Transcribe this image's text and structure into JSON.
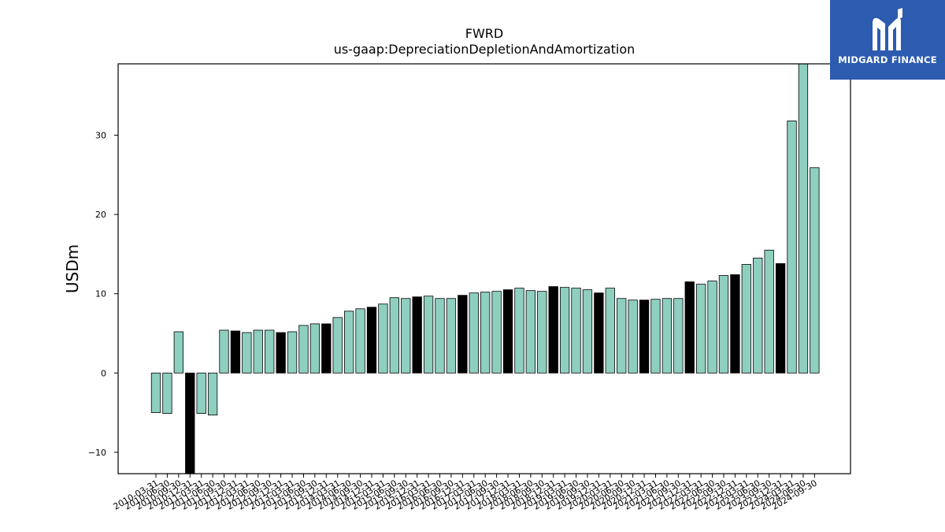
{
  "brand": {
    "name": "MIDGARD FINANCE",
    "icon": "midgard-m-icon",
    "color": "#2c5bb0"
  },
  "colors": {
    "bar_teal": "#8ecfc0",
    "bar_black": "#000000",
    "edge": "#000000"
  },
  "chart_data": {
    "type": "bar",
    "title": "FWRD",
    "subtitle": "us-gaap:DepreciationDepletionAndAmortization",
    "xlabel": "",
    "ylabel": "USDm",
    "ylim": [
      -12.7,
      39
    ],
    "yticks": [
      -10,
      0,
      10,
      20,
      30
    ],
    "grid": false,
    "categories": [
      "2010-03-31",
      "2010-06-30",
      "2010-09-30",
      "2010-12-31",
      "2011-03-31",
      "2011-06-30",
      "2011-09-30",
      "2011-12-31",
      "2012-03-31",
      "2012-06-30",
      "2012-09-30",
      "2012-12-31",
      "2013-03-31",
      "2013-06-30",
      "2013-09-30",
      "2013-12-31",
      "2014-03-31",
      "2014-06-30",
      "2014-09-30",
      "2014-12-31",
      "2015-03-31",
      "2015-06-30",
      "2015-09-30",
      "2015-12-31",
      "2016-03-31",
      "2016-06-30",
      "2016-09-30",
      "2016-12-31",
      "2017-03-31",
      "2017-06-30",
      "2017-09-30",
      "2017-12-31",
      "2018-03-31",
      "2018-06-30",
      "2018-09-30",
      "2018-12-31",
      "2019-03-31",
      "2019-06-30",
      "2019-09-30",
      "2019-12-31",
      "2020-03-31",
      "2020-06-30",
      "2020-09-30",
      "2020-12-31",
      "2021-03-31",
      "2021-06-30",
      "2021-09-30",
      "2021-12-31",
      "2022-03-31",
      "2022-06-30",
      "2022-09-30",
      "2022-12-31",
      "2023-03-31",
      "2023-06-30",
      "2023-09-30",
      "2023-12-31",
      "2024-03-31",
      "2024-06-30",
      "2024-09-30"
    ],
    "values": [
      -5.0,
      -5.1,
      5.2,
      -13.5,
      -5.1,
      -5.3,
      5.4,
      5.3,
      5.1,
      5.4,
      5.4,
      5.1,
      5.2,
      6.0,
      6.2,
      6.2,
      7.0,
      7.8,
      8.1,
      8.3,
      8.7,
      9.5,
      9.4,
      9.6,
      9.7,
      9.4,
      9.4,
      9.8,
      10.1,
      10.2,
      10.3,
      10.5,
      10.7,
      10.4,
      10.3,
      10.9,
      10.8,
      10.7,
      10.5,
      10.1,
      10.7,
      9.4,
      9.2,
      9.2,
      9.3,
      9.4,
      9.4,
      11.5,
      11.2,
      11.6,
      12.3,
      12.4,
      13.7,
      14.5,
      15.5,
      13.8,
      31.8,
      39.5,
      25.9
    ],
    "highlight_year_end": true
  }
}
